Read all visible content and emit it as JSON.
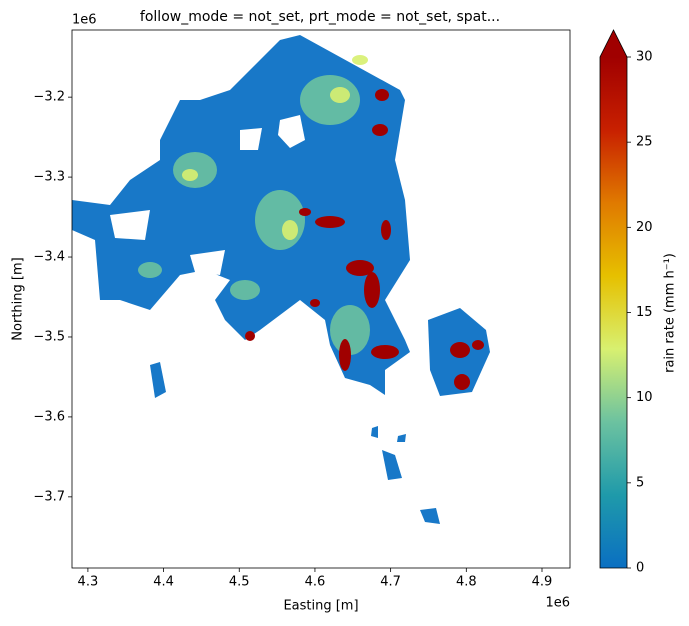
{
  "chart_data": {
    "type": "heatmap",
    "title": "follow_mode = not_set, prt_mode = not_set, spat...",
    "x_label": "Easting [m]",
    "y_label": "Northing [m]",
    "x_offset_label": "1e6",
    "y_offset_label": "1e6",
    "xlim": [
      4.279,
      4.937
    ],
    "xticks": [
      4.3,
      4.4,
      4.5,
      4.6,
      4.7,
      4.8,
      4.9
    ],
    "ylim": [
      -3.789,
      -3.116
    ],
    "yticks": [
      {
        "value": -3.2,
        "label": "−3.2"
      },
      {
        "value": -3.3,
        "label": "−3.3"
      },
      {
        "value": -3.4,
        "label": "−3.4"
      },
      {
        "value": -3.5,
        "label": "−3.5"
      },
      {
        "value": -3.6,
        "label": "−3.6"
      },
      {
        "value": -3.7,
        "label": "−3.7"
      }
    ],
    "colorbar_label": "rain rate (mm h⁻¹)",
    "clim": [
      0,
      30
    ],
    "cticks": [
      0,
      5,
      10,
      15,
      20,
      25,
      30
    ],
    "colormap": [
      "#0a6fc2",
      "#1f9aaa",
      "#6cc2a0",
      "#d8f070",
      "#e6c000",
      "#e07a00",
      "#c82000",
      "#a00000"
    ],
    "extend_max_color": "#a00000"
  }
}
